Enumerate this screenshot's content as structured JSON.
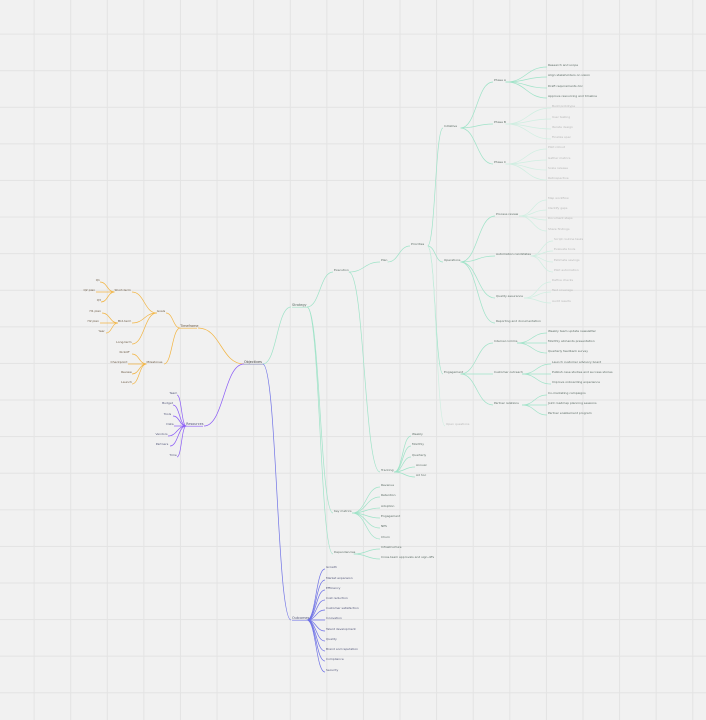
{
  "mindmap": {
    "root": "Objectives",
    "nodes": [
      {
        "id": "root",
        "label": "Objectives",
        "parent": null,
        "tone": "dark"
      },
      {
        "id": "left-hub",
        "label": "Timeframe",
        "parent": "root",
        "tone": "orange"
      },
      {
        "id": "l-a",
        "label": "Goals",
        "parent": "left-hub",
        "tone": "orange"
      },
      {
        "id": "l-b",
        "label": "Milestones",
        "parent": "left-hub",
        "tone": "orange"
      },
      {
        "id": "l-a1",
        "label": "Short-term",
        "parent": "l-a",
        "tone": "orange"
      },
      {
        "id": "l-a2",
        "label": "Mid-term",
        "parent": "l-a",
        "tone": "orange"
      },
      {
        "id": "l-a3",
        "label": "Long-term",
        "parent": "l-a",
        "tone": "orange"
      },
      {
        "id": "l-a1a",
        "label": "Q1",
        "parent": "l-a1",
        "tone": "orange"
      },
      {
        "id": "l-a1b",
        "label": "Q2 plan",
        "parent": "l-a1",
        "tone": "orange"
      },
      {
        "id": "l-a1c",
        "label": "Q3",
        "parent": "l-a1",
        "tone": "orange"
      },
      {
        "id": "l-a2a",
        "label": "H1 plan",
        "parent": "l-a2",
        "tone": "orange"
      },
      {
        "id": "l-a2b",
        "label": "H2 plan",
        "parent": "l-a2",
        "tone": "orange"
      },
      {
        "id": "l-a2c",
        "label": "Year",
        "parent": "l-a2",
        "tone": "orange"
      },
      {
        "id": "l-b1",
        "label": "Kickoff",
        "parent": "l-b",
        "tone": "orange"
      },
      {
        "id": "l-b2",
        "label": "Checkpoint",
        "parent": "l-b",
        "tone": "orange"
      },
      {
        "id": "l-b3",
        "label": "Review",
        "parent": "l-b",
        "tone": "orange"
      },
      {
        "id": "l-b4",
        "label": "Launch",
        "parent": "l-b",
        "tone": "orange"
      },
      {
        "id": "purple-hub",
        "label": "Resources",
        "parent": "root",
        "tone": "blue"
      },
      {
        "id": "p-1",
        "label": "Team",
        "parent": "purple-hub",
        "tone": "blue"
      },
      {
        "id": "p-2",
        "label": "Budget",
        "parent": "purple-hub",
        "tone": "blue"
      },
      {
        "id": "p-3",
        "label": "Tools",
        "parent": "purple-hub",
        "tone": "blue"
      },
      {
        "id": "p-4",
        "label": "Data",
        "parent": "purple-hub",
        "tone": "blue"
      },
      {
        "id": "p-5",
        "label": "Vendors",
        "parent": "purple-hub",
        "tone": "blue"
      },
      {
        "id": "p-6",
        "label": "Partners",
        "parent": "purple-hub",
        "tone": "blue"
      },
      {
        "id": "p-7",
        "label": "Time",
        "parent": "purple-hub",
        "tone": "blue"
      },
      {
        "id": "g-hub",
        "label": "Strategy",
        "parent": "root",
        "tone": "green"
      },
      {
        "id": "g-a",
        "label": "Execution",
        "parent": "g-hub",
        "tone": "green"
      },
      {
        "id": "g-b",
        "label": "Plan",
        "parent": "g-a",
        "tone": "green"
      },
      {
        "id": "g-c",
        "label": "Priorities",
        "parent": "g-b",
        "tone": "green"
      },
      {
        "id": "g-c1",
        "label": "Initiative",
        "parent": "g-c",
        "tone": "green"
      },
      {
        "id": "g-c1a",
        "label": "Phase A",
        "parent": "g-c1",
        "tone": "green"
      },
      {
        "id": "g-c1b",
        "label": "Phase B",
        "parent": "g-c1",
        "tone": "green"
      },
      {
        "id": "g-c1c",
        "label": "Phase C",
        "parent": "g-c1",
        "tone": "green"
      },
      {
        "id": "g-c1a1",
        "label": "Research and scope",
        "parent": "g-c1a",
        "tone": "green"
      },
      {
        "id": "g-c1a2",
        "label": "Align stakeholders on vision",
        "parent": "g-c1a",
        "tone": "green"
      },
      {
        "id": "g-c1a3",
        "label": "Draft requirements doc",
        "parent": "g-c1a",
        "tone": "green"
      },
      {
        "id": "g-c1a4",
        "label": "Approve resourcing and timeline",
        "parent": "g-c1a",
        "tone": "green"
      },
      {
        "id": "g-c1b1",
        "label": "Build prototype",
        "parent": "g-c1b",
        "tone": "faint"
      },
      {
        "id": "g-c1b2",
        "label": "User testing",
        "parent": "g-c1b",
        "tone": "faint"
      },
      {
        "id": "g-c1b3",
        "label": "Iterate design",
        "parent": "g-c1b",
        "tone": "faint"
      },
      {
        "id": "g-c1b4",
        "label": "Finalize spec",
        "parent": "g-c1b",
        "tone": "faint"
      },
      {
        "id": "g-c1c1",
        "label": "Pilot rollout",
        "parent": "g-c1c",
        "tone": "faint"
      },
      {
        "id": "g-c1c2",
        "label": "Gather metrics",
        "parent": "g-c1c",
        "tone": "faint"
      },
      {
        "id": "g-c1c3",
        "label": "Scale release",
        "parent": "g-c1c",
        "tone": "faint"
      },
      {
        "id": "g-c1c4",
        "label": "Retrospective",
        "parent": "g-c1c",
        "tone": "faint"
      },
      {
        "id": "g-c2",
        "label": "Operations",
        "parent": "g-c",
        "tone": "green"
      },
      {
        "id": "g-c2a",
        "label": "Process review",
        "parent": "g-c2",
        "tone": "green"
      },
      {
        "id": "g-c2b",
        "label": "Automation candidates",
        "parent": "g-c2",
        "tone": "green"
      },
      {
        "id": "g-c2c",
        "label": "Quality assurance",
        "parent": "g-c2",
        "tone": "green"
      },
      {
        "id": "g-c2d",
        "label": "Reporting and documentation",
        "parent": "g-c2",
        "tone": "green"
      },
      {
        "id": "g-c2a1",
        "label": "Map workflow",
        "parent": "g-c2a",
        "tone": "faint"
      },
      {
        "id": "g-c2a2",
        "label": "Identify gaps",
        "parent": "g-c2a",
        "tone": "faint"
      },
      {
        "id": "g-c2a3",
        "label": "Document steps",
        "parent": "g-c2a",
        "tone": "faint"
      },
      {
        "id": "g-c2a4",
        "label": "Share findings",
        "parent": "g-c2a",
        "tone": "faint"
      },
      {
        "id": "g-c2b1",
        "label": "Script routine tasks",
        "parent": "g-c2b",
        "tone": "faint"
      },
      {
        "id": "g-c2b2",
        "label": "Evaluate tools",
        "parent": "g-c2b",
        "tone": "faint"
      },
      {
        "id": "g-c2b3",
        "label": "Estimate savings",
        "parent": "g-c2b",
        "tone": "faint"
      },
      {
        "id": "g-c2b4",
        "label": "Pilot automation",
        "parent": "g-c2b",
        "tone": "faint"
      },
      {
        "id": "g-c2c1",
        "label": "Define checks",
        "parent": "g-c2c",
        "tone": "faint"
      },
      {
        "id": "g-c2c2",
        "label": "Test coverage",
        "parent": "g-c2c",
        "tone": "faint"
      },
      {
        "id": "g-c2c3",
        "label": "Audit results",
        "parent": "g-c2c",
        "tone": "faint"
      },
      {
        "id": "g-c3",
        "label": "Engagement",
        "parent": "g-c",
        "tone": "green"
      },
      {
        "id": "g-c3a",
        "label": "Internal comms",
        "parent": "g-c3",
        "tone": "green"
      },
      {
        "id": "g-c3b",
        "label": "Customer outreach",
        "parent": "g-c3",
        "tone": "green"
      },
      {
        "id": "g-c3c",
        "label": "Partner relations",
        "parent": "g-c3",
        "tone": "green"
      },
      {
        "id": "g-c3a1",
        "label": "Weekly team update newsletter",
        "parent": "g-c3a",
        "tone": "green"
      },
      {
        "id": "g-c3a2",
        "label": "Monthly all-hands presentation",
        "parent": "g-c3a",
        "tone": "green"
      },
      {
        "id": "g-c3a3",
        "label": "Quarterly feedback survey",
        "parent": "g-c3a",
        "tone": "green"
      },
      {
        "id": "g-c3b1",
        "label": "Launch customer advisory board",
        "parent": "g-c3b",
        "tone": "green"
      },
      {
        "id": "g-c3b2",
        "label": "Publish case studies and success stories",
        "parent": "g-c3b",
        "tone": "green"
      },
      {
        "id": "g-c3b3",
        "label": "Improve onboarding experience",
        "parent": "g-c3b",
        "tone": "green"
      },
      {
        "id": "g-c3c1",
        "label": "Co-marketing campaigns",
        "parent": "g-c3c",
        "tone": "green"
      },
      {
        "id": "g-c3c2",
        "label": "Joint roadmap planning sessions",
        "parent": "g-c3c",
        "tone": "green"
      },
      {
        "id": "g-c3c3",
        "label": "Partner enablement program",
        "parent": "g-c3c",
        "tone": "green"
      },
      {
        "id": "g-c4",
        "label": "Open questions",
        "parent": "g-c",
        "tone": "faint"
      },
      {
        "id": "g-d",
        "label": "Tracking",
        "parent": "g-a",
        "tone": "green"
      },
      {
        "id": "g-d1",
        "label": "Weekly",
        "parent": "g-d",
        "tone": "green"
      },
      {
        "id": "g-d2",
        "label": "Monthly",
        "parent": "g-d",
        "tone": "green"
      },
      {
        "id": "g-d3",
        "label": "Quarterly",
        "parent": "g-d",
        "tone": "green"
      },
      {
        "id": "g-d4",
        "label": "Annual",
        "parent": "g-d",
        "tone": "green"
      },
      {
        "id": "g-d5",
        "label": "Ad hoc",
        "parent": "g-d",
        "tone": "green"
      },
      {
        "id": "g-e",
        "label": "Key metrics",
        "parent": "g-hub",
        "tone": "green"
      },
      {
        "id": "g-e1",
        "label": "Revenue",
        "parent": "g-e",
        "tone": "green"
      },
      {
        "id": "g-e2",
        "label": "Retention",
        "parent": "g-e",
        "tone": "green"
      },
      {
        "id": "g-e3",
        "label": "Adoption",
        "parent": "g-e",
        "tone": "green"
      },
      {
        "id": "g-e4",
        "label": "Engagement",
        "parent": "g-e",
        "tone": "green"
      },
      {
        "id": "g-e5",
        "label": "NPS",
        "parent": "g-e",
        "tone": "green"
      },
      {
        "id": "g-e6",
        "label": "Churn",
        "parent": "g-e",
        "tone": "green"
      },
      {
        "id": "g-f",
        "label": "Dependencies",
        "parent": "g-hub",
        "tone": "green"
      },
      {
        "id": "g-f1",
        "label": "Infrastructure",
        "parent": "g-f",
        "tone": "green"
      },
      {
        "id": "g-f2",
        "label": "Cross-team approvals and sign-offs",
        "parent": "g-f",
        "tone": "green"
      },
      {
        "id": "b-hub",
        "label": "Outcomes",
        "parent": "root",
        "tone": "blue"
      },
      {
        "id": "b-1",
        "label": "Growth",
        "parent": "b-hub",
        "tone": "blue"
      },
      {
        "id": "b-2",
        "label": "Market expansion",
        "parent": "b-hub",
        "tone": "blue"
      },
      {
        "id": "b-3",
        "label": "Efficiency",
        "parent": "b-hub",
        "tone": "blue"
      },
      {
        "id": "b-4",
        "label": "Cost reduction",
        "parent": "b-hub",
        "tone": "blue"
      },
      {
        "id": "b-5",
        "label": "Customer satisfaction",
        "parent": "b-hub",
        "tone": "blue"
      },
      {
        "id": "b-6",
        "label": "Innovation",
        "parent": "b-hub",
        "tone": "blue"
      },
      {
        "id": "b-7",
        "label": "Talent development",
        "parent": "b-hub",
        "tone": "blue"
      },
      {
        "id": "b-8",
        "label": "Quality",
        "parent": "b-hub",
        "tone": "blue"
      },
      {
        "id": "b-9",
        "label": "Brand and reputation",
        "parent": "b-hub",
        "tone": "blue"
      },
      {
        "id": "b-10",
        "label": "Compliance",
        "parent": "b-hub",
        "tone": "blue"
      },
      {
        "id": "b-11",
        "label": "Security",
        "parent": "b-hub",
        "tone": "blue"
      }
    ]
  },
  "branch_colors": {
    "orange": "#f2b544",
    "blue": "#6f72e6",
    "green": "#9fe3c8",
    "faint": "#cfeee1",
    "dark": "#8a8fb8"
  }
}
